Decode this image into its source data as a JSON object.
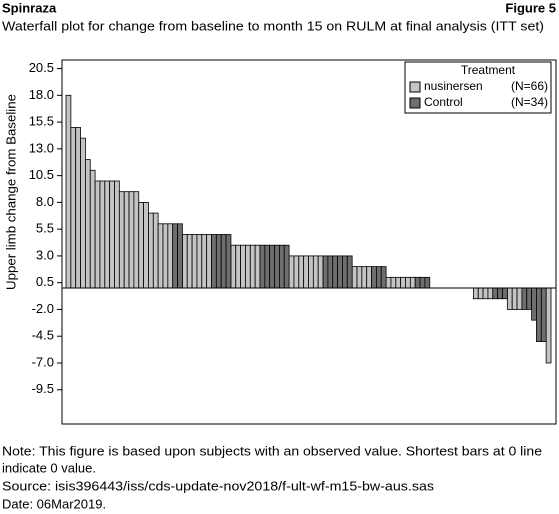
{
  "header": {
    "left": "Spinraza",
    "right": "Figure 5"
  },
  "chart_data": {
    "type": "bar",
    "title": "Waterfall plot for change from baseline to month 15 on RULM at final analysis (ITT set)",
    "y_label": "Upper limb change from Baseline",
    "legend_title": "Treatment",
    "legend": "top-right",
    "ylim": [
      -12.7,
      21.3
    ],
    "yticks": [
      20.5,
      {
        "value": 18,
        "label": "18.0"
      },
      15.5,
      {
        "value": 13,
        "label": "13.0"
      },
      10.5,
      {
        "value": 8,
        "label": "8.0"
      },
      5.5,
      {
        "value": 3,
        "label": "3.0"
      },
      0.5,
      {
        "value": -2,
        "label": "-2.0"
      },
      -4.5,
      {
        "value": -7,
        "label": "-7.0"
      },
      -9.5
    ],
    "series": [
      {
        "name": "nusinersen",
        "count_label": "(N=66)",
        "color": "#c4c4c4",
        "values": [
          18,
          15,
          15,
          14,
          12,
          11,
          10,
          10,
          10,
          10,
          10,
          9,
          9,
          9,
          9,
          8,
          8,
          7,
          7,
          6,
          6,
          6,
          null,
          null,
          5,
          5,
          5,
          5,
          5,
          5,
          null,
          null,
          null,
          null,
          4,
          4,
          4,
          4,
          4,
          4,
          null,
          null,
          null,
          null,
          null,
          null,
          3,
          3,
          3,
          3,
          3,
          3,
          3,
          null,
          null,
          null,
          null,
          null,
          null,
          2,
          2,
          2,
          2,
          null,
          null,
          null,
          1,
          1,
          1,
          1,
          1,
          1,
          null,
          null,
          null,
          0,
          0,
          0,
          0,
          0,
          0,
          0,
          null,
          null,
          -1,
          -1,
          -1,
          -1,
          null,
          null,
          null,
          -2,
          -2,
          -2,
          null,
          null,
          null,
          null,
          null,
          -7
        ]
      },
      {
        "name": "Control",
        "count_label": "(N=34)",
        "color": "#6e6e6e",
        "values": [
          null,
          null,
          null,
          null,
          null,
          null,
          null,
          null,
          null,
          null,
          null,
          null,
          null,
          null,
          null,
          null,
          null,
          null,
          null,
          null,
          null,
          null,
          6,
          6,
          null,
          null,
          null,
          null,
          null,
          null,
          5,
          5,
          5,
          5,
          null,
          null,
          null,
          null,
          null,
          null,
          4,
          4,
          4,
          4,
          4,
          4,
          null,
          null,
          null,
          null,
          null,
          null,
          null,
          3,
          3,
          3,
          3,
          3,
          3,
          null,
          null,
          null,
          null,
          2,
          2,
          2,
          null,
          null,
          null,
          null,
          null,
          null,
          1,
          1,
          1,
          null,
          null,
          null,
          null,
          null,
          null,
          null,
          0,
          0,
          null,
          null,
          null,
          null,
          -1,
          -1,
          -1,
          null,
          null,
          null,
          -2,
          -2,
          -3,
          -5,
          -5,
          null
        ]
      }
    ]
  },
  "notes": [
    "Note: This figure is based upon subjects with an observed value. Shortest bars at 0 line",
    "indicate 0 value.",
    "Source: isis396443/iss/cds-update-nov2018/f-ult-wf-m15-bw-aus.sas",
    "Date: 06Mar2019."
  ]
}
